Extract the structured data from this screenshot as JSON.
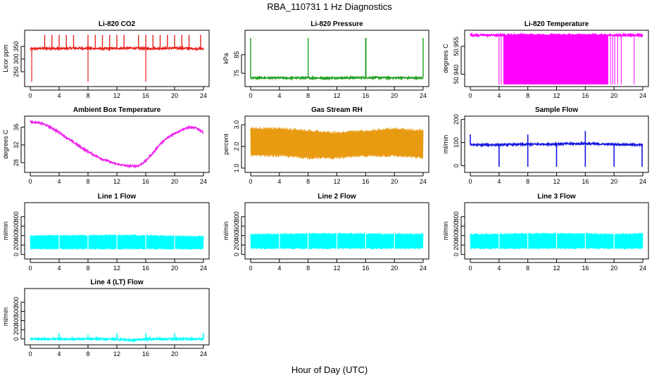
{
  "title": "RBA_110731  1 Hz Diagnostics",
  "xlabel": "Hour of Day (UTC)",
  "chart_data": [
    {
      "type": "line",
      "title": "Li-820 CO2",
      "ylabel": "Licor ppm",
      "color": "#e8231f",
      "xlim": [
        0,
        24
      ],
      "ylim": [
        200,
        405
      ],
      "xticks": [
        "0",
        "4",
        "8",
        "12",
        "16",
        "20",
        "24"
      ],
      "yticks": [
        250,
        300,
        350
      ],
      "series": [
        {
          "x": [
            0,
            2,
            4,
            6,
            8,
            10,
            12,
            14,
            16,
            18,
            20,
            22,
            24
          ],
          "values": [
            340,
            342,
            341,
            343,
            342,
            341,
            342,
            343,
            341,
            342,
            343,
            342,
            340
          ]
        }
      ]
    },
    {
      "type": "line",
      "title": "Li-820 Pressure",
      "ylabel": "kPa",
      "color": "#1fa01f",
      "xlim": [
        0,
        24
      ],
      "ylim": [
        69,
        97
      ],
      "xticks": [
        "0",
        "4",
        "8",
        "12",
        "16",
        "20",
        "24"
      ],
      "yticks": [
        75,
        85
      ],
      "series": [
        {
          "x": [
            0,
            4,
            8,
            12,
            16,
            20,
            24
          ],
          "values": [
            72.5,
            72.5,
            72.5,
            72.5,
            72.7,
            72.6,
            72.4
          ]
        }
      ]
    },
    {
      "type": "line",
      "title": "Li-820 Temperature",
      "ylabel": "degrees C",
      "color": "#ff00ff",
      "xlim": [
        0,
        24
      ],
      "ylim": [
        50.9345,
        50.9625
      ],
      "xticks": [
        "0",
        "4",
        "8",
        "12",
        "16",
        "20",
        "24"
      ],
      "yticks": [
        50.94,
        50.955
      ],
      "yticklabels": [
        "50.940",
        "50.955"
      ],
      "series": [
        {
          "x": [
            0,
            4,
            8,
            12,
            16,
            19,
            24
          ],
          "values": [
            50.961,
            50.961,
            50.961,
            50.961,
            50.961,
            50.961,
            50.961
          ]
        }
      ]
    },
    {
      "type": "line",
      "title": "Ambient Box Temperature",
      "ylabel": "degrees C",
      "color": "#ee22ee",
      "xlim": [
        0,
        24
      ],
      "ylim": [
        26.3,
        38.0
      ],
      "xticks": [
        "0",
        "4",
        "8",
        "12",
        "16",
        "20",
        "24"
      ],
      "yticks": [
        28,
        32,
        36
      ],
      "series": [
        {
          "x": [
            0,
            1,
            2,
            3,
            4,
            5,
            6,
            7,
            8,
            9,
            10,
            11,
            12,
            13,
            14,
            15,
            16,
            17,
            18,
            19,
            20,
            21,
            22,
            23,
            24
          ],
          "values": [
            37.2,
            37.0,
            36.6,
            35.8,
            34.8,
            33.7,
            32.6,
            31.5,
            30.5,
            29.6,
            28.8,
            28.2,
            27.7,
            27.4,
            27.2,
            27.3,
            28.4,
            30.2,
            32.2,
            33.6,
            34.6,
            35.4,
            35.9,
            35.8,
            34.8
          ]
        }
      ]
    },
    {
      "type": "line",
      "title": "Gas Stream RH",
      "ylabel": "percent",
      "color": "#e89a10",
      "xlim": [
        0,
        24
      ],
      "ylim": [
        0.9,
        3.3
      ],
      "xticks": [
        "0",
        "4",
        "8",
        "12",
        "16",
        "20",
        "24"
      ],
      "yticks": [
        1.0,
        2.0,
        3.0
      ],
      "yticklabels": [
        "1.0",
        "2.0",
        "3.0"
      ],
      "series": [
        {
          "name": "",
          "x": [
            0,
            4,
            8,
            12,
            16,
            20,
            24
          ],
          "values": [
            2.9,
            2.9,
            2.8,
            2.7,
            2.8,
            2.9,
            2.8
          ]
        },
        {
          "name": "",
          "x": [
            0,
            4,
            8,
            12,
            16,
            20,
            24
          ],
          "values": [
            1.5,
            1.5,
            1.4,
            1.4,
            1.5,
            1.5,
            1.4
          ]
        }
      ]
    },
    {
      "type": "line",
      "title": "Sample Flow",
      "ylabel": "ml/min",
      "color": "#1616e0",
      "xlim": [
        0,
        24
      ],
      "ylim": [
        -20,
        205
      ],
      "xticks": [
        "0",
        "4",
        "8",
        "12",
        "16",
        "20",
        "24"
      ],
      "yticks": [
        0,
        100,
        200
      ],
      "series": [
        {
          "x": [
            0,
            4,
            8,
            12,
            16,
            20,
            24
          ],
          "values": [
            90,
            90,
            92,
            94,
            95,
            92,
            90
          ]
        }
      ]
    },
    {
      "type": "line",
      "title": "Line 1 Flow",
      "ylabel": "ml/min",
      "color": "#00ffff",
      "xlim": [
        0,
        24
      ],
      "ylim": [
        -50,
        1050
      ],
      "xticks": [
        "0",
        "4",
        "8",
        "12",
        "16",
        "20",
        "24"
      ],
      "yticks": [
        0,
        200,
        400,
        600,
        800
      ],
      "series": [
        {
          "name": "",
          "x": [
            0,
            4,
            8,
            12,
            16,
            20,
            24
          ],
          "values": [
            410,
            420,
            420,
            430,
            420,
            410,
            400
          ]
        },
        {
          "name": "",
          "x": [
            0,
            4,
            8,
            12,
            16,
            20,
            24
          ],
          "values": [
            100,
            100,
            100,
            100,
            100,
            100,
            100
          ]
        }
      ]
    },
    {
      "type": "line",
      "title": "Line 2 Flow",
      "ylabel": "ml/min",
      "color": "#00ffff",
      "xlim": [
        0,
        24
      ],
      "ylim": [
        -50,
        1050
      ],
      "xticks": [
        "0",
        "4",
        "8",
        "12",
        "16",
        "20",
        "24"
      ],
      "yticks": [
        0,
        200,
        400,
        600,
        800
      ],
      "series": [
        {
          "name": "",
          "x": [
            0,
            4,
            8,
            12,
            16,
            20,
            24
          ],
          "values": [
            450,
            450,
            460,
            460,
            460,
            450,
            450
          ]
        },
        {
          "name": "",
          "x": [
            0,
            4,
            8,
            12,
            16,
            20,
            24
          ],
          "values": [
            110,
            110,
            110,
            110,
            110,
            110,
            110
          ]
        }
      ]
    },
    {
      "type": "line",
      "title": "Line 3 Flow",
      "ylabel": "ml/min",
      "color": "#00ffff",
      "xlim": [
        0,
        24
      ],
      "ylim": [
        -50,
        1050
      ],
      "xticks": [
        "0",
        "4",
        "8",
        "12",
        "16",
        "20",
        "24"
      ],
      "yticks": [
        0,
        200,
        400,
        600,
        800
      ],
      "series": [
        {
          "name": "",
          "x": [
            0,
            4,
            8,
            12,
            16,
            20,
            24
          ],
          "values": [
            450,
            450,
            460,
            460,
            460,
            450,
            460
          ]
        },
        {
          "name": "",
          "x": [
            0,
            4,
            8,
            12,
            16,
            20,
            24
          ],
          "values": [
            110,
            110,
            110,
            110,
            110,
            110,
            110
          ]
        }
      ]
    },
    {
      "type": "line",
      "title": "Line 4 (LT) Flow",
      "ylabel": "ml/min",
      "color": "#00ffff",
      "xlim": [
        0,
        24
      ],
      "ylim": [
        -80,
        1050
      ],
      "xticks": [
        "0",
        "4",
        "8",
        "12",
        "16",
        "20",
        "24"
      ],
      "yticks": [
        0,
        200,
        400,
        600,
        800
      ],
      "series": [
        {
          "x": [
            0,
            4,
            8,
            12,
            14,
            16,
            20,
            24
          ],
          "values": [
            0,
            0,
            0,
            0,
            -25,
            0,
            0,
            0
          ]
        }
      ]
    }
  ]
}
